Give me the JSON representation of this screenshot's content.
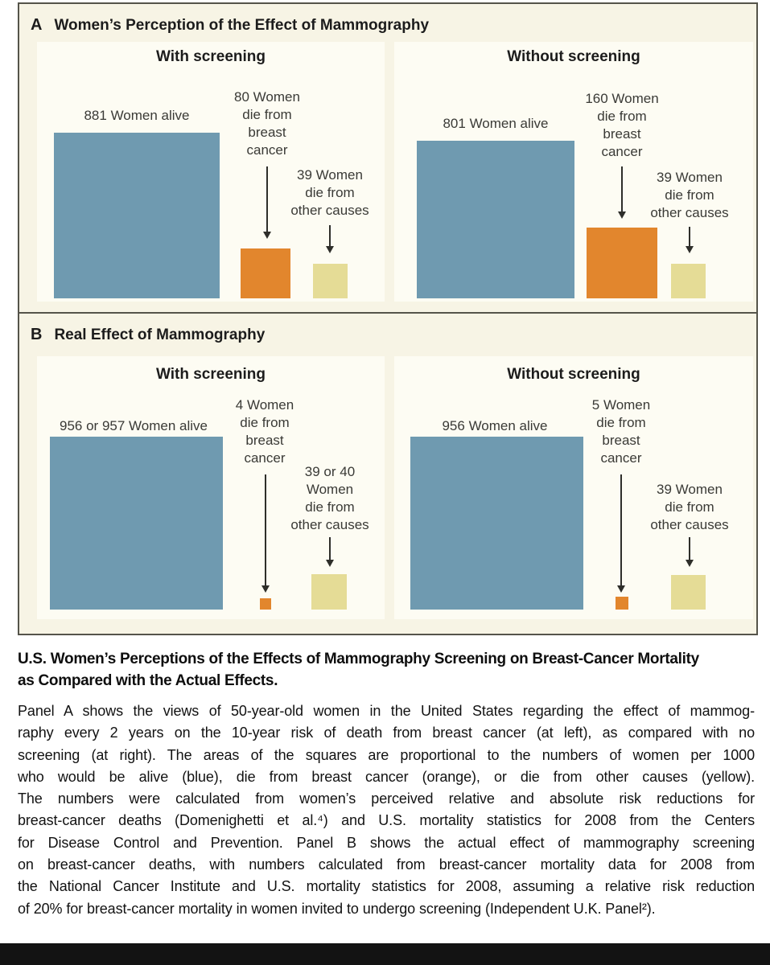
{
  "colors": {
    "alive_blue": "#6f9ab0",
    "breast_orange": "#e2862d",
    "other_yellow": "#e5dc96",
    "figure_bg": "#f7f4e5",
    "chart_bg": "#fdfcf3",
    "figure_border": "#55544a",
    "bottom_bar": "#131313"
  },
  "figure": {
    "panel_a": {
      "label": "A",
      "title": "Women’s Perception of the Effect of Mammography",
      "with_screening": {
        "header": "With screening",
        "alive_label": "881 Women alive",
        "alive_value": 881,
        "breast_lines": [
          "80 Women",
          "die from",
          "breast",
          "cancer"
        ],
        "breast_value": 80,
        "other_lines": [
          "39 Women",
          "die from",
          "other causes"
        ],
        "other_value": 39
      },
      "without_screening": {
        "header": "Without screening",
        "alive_label": "801 Women alive",
        "alive_value": 801,
        "breast_lines": [
          "160 Women",
          "die from",
          "breast",
          "cancer"
        ],
        "breast_value": 160,
        "other_lines": [
          "39 Women",
          "die from",
          "other causes"
        ],
        "other_value": 39
      }
    },
    "panel_b": {
      "label": "B",
      "title": "Real Effect of Mammography",
      "with_screening": {
        "header": "With screening",
        "alive_label": "956 or 957 Women alive",
        "alive_value": 956.5,
        "breast_lines": [
          "4 Women",
          "die from",
          "breast",
          "cancer"
        ],
        "breast_value": 4,
        "other_lines": [
          "39 or 40",
          "Women",
          "die from",
          "other causes"
        ],
        "other_value": 39.5
      },
      "without_screening": {
        "header": "Without screening",
        "alive_label": "956 Women alive",
        "alive_value": 956,
        "breast_lines": [
          "5 Women",
          "die from",
          "breast",
          "cancer"
        ],
        "breast_value": 5,
        "other_lines": [
          "39 Women",
          "die from",
          "other causes"
        ],
        "other_value": 39
      }
    }
  },
  "caption": {
    "title_lines": [
      "U.S. Women’s Perceptions of the Effects of Mammography Screening on Breast-Cancer Mortality",
      "as Compared with the Actual Effects."
    ],
    "body_lines": [
      "Panel A shows the views of 50-year-old women in the United States regarding the effect of mammog-",
      "raphy every 2 years on the 10-year risk of death from breast cancer (at left), as compared with no",
      "screening (at right). The areas of the squares are proportional to the numbers of women per 1000",
      "who would be alive (blue), die from breast cancer (orange), or die from other causes (yellow).",
      "The numbers were calculated from women’s perceived relative and absolute risk reductions for",
      "breast-cancer deaths (Domenighetti et al.⁴) and U.S. mortality statistics for 2008 from the Centers",
      "for Disease Control and Prevention. Panel B shows the actual effect of mammography screening",
      "on breast-cancer deaths, with numbers calculated from breast-cancer mortality data for 2008 from",
      "the National Cancer Institute and U.S. mortality statistics for 2008, assuming a relative risk reduction",
      "of 20% for breast-cancer mortality in women invited to undergo screening (Independent U.K. Panel²)."
    ]
  },
  "chart_data": [
    {
      "type": "bar",
      "variant": "proportional-area-squares",
      "title": "A: Women’s Perception of the Effect of Mammography",
      "unit": "women per 1000",
      "categories": [
        "Women alive",
        "Women die from breast cancer",
        "Women die from other causes"
      ],
      "series": [
        {
          "name": "With screening",
          "values": [
            881,
            80,
            39
          ]
        },
        {
          "name": "Without screening",
          "values": [
            801,
            160,
            39
          ]
        }
      ],
      "colors": [
        "#6f9ab0",
        "#e2862d",
        "#e5dc96"
      ],
      "note": "Areas of squares are proportional to numbers of women per 1000"
    },
    {
      "type": "bar",
      "variant": "proportional-area-squares",
      "title": "B: Real Effect of Mammography",
      "unit": "women per 1000",
      "categories": [
        "Women alive",
        "Women die from breast cancer",
        "Women die from other causes"
      ],
      "series": [
        {
          "name": "With screening",
          "values": [
            "956 or 957",
            4,
            "39 or 40"
          ]
        },
        {
          "name": "Without screening",
          "values": [
            956,
            5,
            39
          ]
        }
      ],
      "colors": [
        "#6f9ab0",
        "#e2862d",
        "#e5dc96"
      ],
      "note": "Areas of squares are proportional to numbers of women per 1000"
    }
  ]
}
